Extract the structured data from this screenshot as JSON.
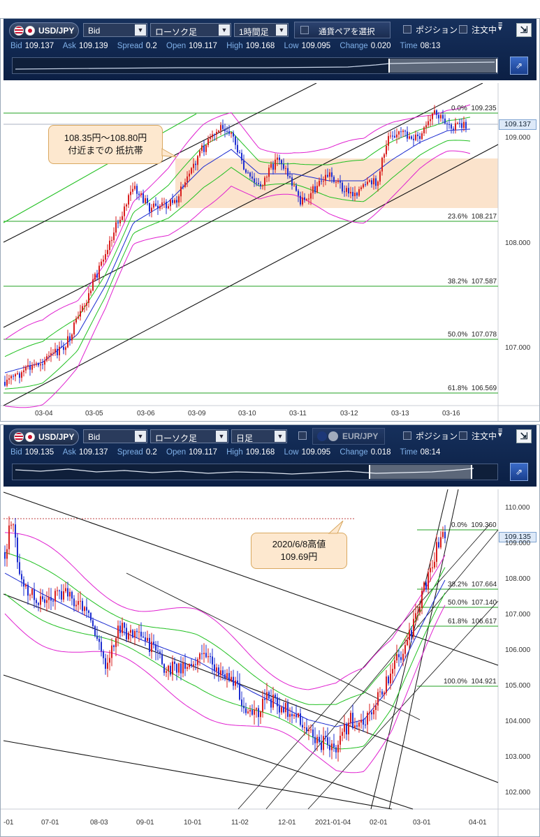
{
  "colors": {
    "toolbar": "#0f2550",
    "chart_bg": "#ffffff",
    "bull": "#d81e1e",
    "bear": "#1f2fd0",
    "fib": "#22a022",
    "bb_outer": "#e020d0",
    "bb_mid": "#20c020",
    "ma": "#1a2ad0",
    "zone": "#fbe3cc"
  },
  "icons": {
    "settings": "menu-icon",
    "corner": "collapse-arrow-icon",
    "nav": "expand-arrow-icon"
  },
  "top": {
    "symbol": "USD/JPY",
    "price_type": "Bid",
    "chart_type": "ローソク足",
    "interval": "1時間足",
    "pair_select": "通貨ペアを選択",
    "position": "ポジション",
    "order": "注文中",
    "quote": {
      "bid_label": "Bid",
      "bid": "109.137",
      "ask_label": "Ask",
      "ask": "109.139",
      "spread_label": "Spread",
      "spread": "0.2",
      "open_label": "Open",
      "open": "109.117",
      "high_label": "High",
      "high": "109.168",
      "low_label": "Low",
      "low": "109.095",
      "change_label": "Change",
      "change": "0.020",
      "time_label": "Time",
      "time": "08:13"
    },
    "callout": [
      "108.35円〜108.80円",
      "付近までの 抵抗帯"
    ],
    "current_price": "109.137",
    "y_ticks": [
      "109.000",
      "108.000",
      "107.000"
    ],
    "x_ticks": [
      "03-04",
      "03-05",
      "03-06",
      "03-09",
      "03-10",
      "03-11",
      "03-12",
      "03-13",
      "03-16"
    ],
    "fib": [
      {
        "pct": "0.0%",
        "val": "109.235"
      },
      {
        "pct": "23.6%",
        "val": "108.217"
      },
      {
        "pct": "38.2%",
        "val": "107.587"
      },
      {
        "pct": "50.0%",
        "val": "107.078"
      },
      {
        "pct": "61.8%",
        "val": "106.569"
      }
    ]
  },
  "bottom": {
    "symbol": "USD/JPY",
    "price_type": "Bid",
    "chart_type": "ローソク足",
    "interval": "日足",
    "pair2": "EUR/JPY",
    "position": "ポジション",
    "order": "注文中",
    "quote": {
      "bid_label": "Bid",
      "bid": "109.135",
      "ask_label": "Ask",
      "ask": "109.137",
      "spread_label": "Spread",
      "spread": "0.2",
      "open_label": "Open",
      "open": "109.117",
      "high_label": "High",
      "high": "109.168",
      "low_label": "Low",
      "low": "109.095",
      "change_label": "Change",
      "change": "0.018",
      "time_label": "Time",
      "time": "08:14"
    },
    "callout": [
      "2020/6/8高値",
      "109.69円"
    ],
    "current_price": "109.135",
    "y_ticks": [
      "110.000",
      "109.000",
      "108.000",
      "107.000",
      "106.000",
      "105.000",
      "104.000",
      "103.000",
      "102.000"
    ],
    "x_ticks": [
      "-01",
      "07-01",
      "08-03",
      "09-01",
      "10-01",
      "11-02",
      "12-01",
      "2021-01-04",
      "02-01",
      "03-01",
      "04-01"
    ],
    "fib": [
      {
        "pct": "0.0%",
        "val": "109.360"
      },
      {
        "pct": "38.2%",
        "val": "107.664"
      },
      {
        "pct": "50.0%",
        "val": "107.140"
      },
      {
        "pct": "61.8%",
        "val": "106.617"
      },
      {
        "pct": "100.0%",
        "val": "104.921"
      }
    ]
  }
}
